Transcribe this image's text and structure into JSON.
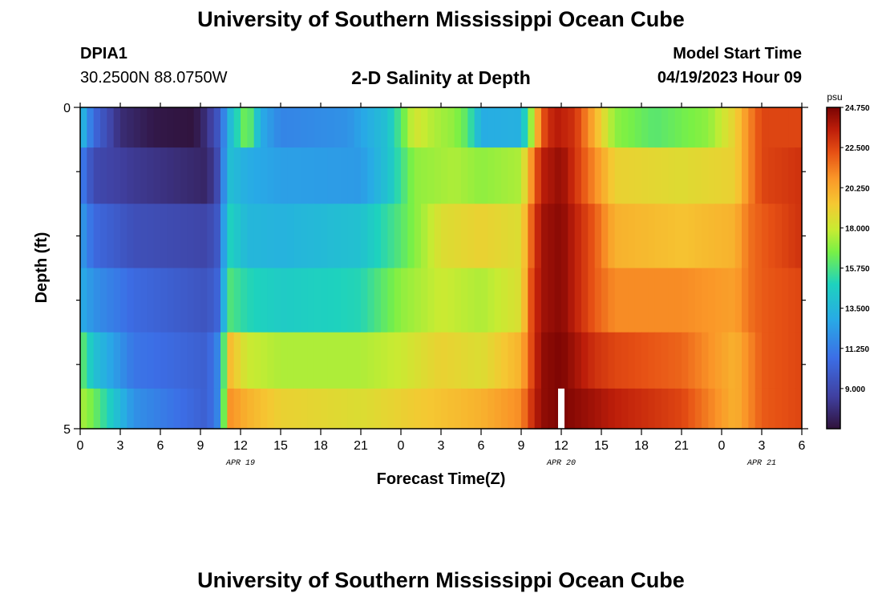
{
  "header": {
    "title": "University of Southern Mississippi Ocean Cube",
    "station_id": "DPIA1",
    "coordinates": "30.2500N  88.0750W",
    "subtitle": "2-D Salinity at Depth",
    "model_label": "Model Start Time",
    "model_time": "04/19/2023 Hour 09"
  },
  "footer": {
    "title": "University of Southern Mississippi Ocean Cube"
  },
  "chart_data": {
    "type": "heatmap",
    "xlabel": "Forecast Time(Z)",
    "ylabel": "Depth (ft)",
    "x_hour_range": [
      0,
      54
    ],
    "y_range": [
      0,
      5
    ],
    "x_tick_labels": [
      "0",
      "3",
      "6",
      "9",
      "12",
      "15",
      "18",
      "21",
      "0",
      "3",
      "6",
      "9",
      "12",
      "15",
      "18",
      "21",
      "0",
      "3",
      "6"
    ],
    "y_tick_labels": [
      "0",
      "5"
    ],
    "date_labels": [
      {
        "text": "APR 19",
        "hour": 12
      },
      {
        "text": "APR 20",
        "hour": 36
      },
      {
        "text": "APR 21",
        "hour": 51
      }
    ],
    "colorbar": {
      "unit": "psu",
      "min": 6.75,
      "max": 24.75,
      "tick_values": [
        9.0,
        11.25,
        13.5,
        15.75,
        18.0,
        20.25,
        22.5,
        24.75
      ],
      "tick_labels": [
        "9.000",
        "11.250",
        "13.500",
        "15.750",
        "18.000",
        "20.250",
        "22.500",
        "24.750"
      ]
    },
    "depth_levels": [
      0.25,
      1.0,
      2.0,
      3.0,
      4.0,
      4.75
    ],
    "time_step_hours": 0.5,
    "missing": {
      "hour": 36,
      "depth_level": 5
    },
    "layers": [
      [
        [
          0,
          14
        ],
        [
          1,
          10.5
        ],
        [
          3,
          7.8
        ],
        [
          5.5,
          7
        ],
        [
          8.5,
          6.8
        ],
        [
          9.5,
          8
        ],
        [
          10.5,
          10
        ],
        [
          11,
          13
        ],
        [
          12.5,
          17
        ],
        [
          13.5,
          13
        ],
        [
          15,
          11.5
        ],
        [
          20,
          12
        ],
        [
          23,
          14
        ],
        [
          24,
          16
        ],
        [
          25,
          18.3
        ],
        [
          26.5,
          17.5
        ],
        [
          28,
          17
        ],
        [
          29,
          16
        ],
        [
          30,
          13
        ],
        [
          33,
          13.2
        ],
        [
          33.8,
          17.5
        ],
        [
          34.5,
          22
        ],
        [
          35.5,
          23.7
        ],
        [
          37,
          23
        ],
        [
          38.5,
          20
        ],
        [
          40,
          17
        ],
        [
          43,
          16
        ],
        [
          47,
          17
        ],
        [
          49,
          19
        ],
        [
          50,
          21
        ],
        [
          51,
          22.5
        ],
        [
          54,
          22.5
        ]
      ],
      [
        [
          0,
          11.5
        ],
        [
          1,
          9
        ],
        [
          4,
          8.3
        ],
        [
          9.5,
          7.5
        ],
        [
          10.5,
          9.5
        ],
        [
          11,
          14
        ],
        [
          12.5,
          13
        ],
        [
          15,
          12.5
        ],
        [
          21,
          12.3
        ],
        [
          23,
          14
        ],
        [
          25,
          17
        ],
        [
          28,
          17.5
        ],
        [
          30,
          17
        ],
        [
          33,
          17.5
        ],
        [
          33.8,
          21
        ],
        [
          34.5,
          23.5
        ],
        [
          36,
          24.3
        ],
        [
          38.5,
          21
        ],
        [
          40,
          19
        ],
        [
          45,
          18.6
        ],
        [
          49,
          19
        ],
        [
          50,
          21
        ],
        [
          51,
          22.5
        ],
        [
          54,
          23
        ]
      ],
      [
        [
          0,
          12.5
        ],
        [
          1,
          10.5
        ],
        [
          4,
          9.3
        ],
        [
          9.5,
          8.8
        ],
        [
          10.5,
          10
        ],
        [
          11,
          15
        ],
        [
          12.5,
          13.5
        ],
        [
          15,
          13.3
        ],
        [
          21,
          14
        ],
        [
          24,
          16
        ],
        [
          27,
          18.5
        ],
        [
          30,
          19
        ],
        [
          33,
          18.5
        ],
        [
          33.8,
          22
        ],
        [
          34.5,
          24
        ],
        [
          36,
          24.5
        ],
        [
          38.5,
          22
        ],
        [
          40,
          20
        ],
        [
          45,
          19.5
        ],
        [
          49,
          20
        ],
        [
          50,
          21.5
        ],
        [
          51,
          22
        ],
        [
          54,
          23
        ]
      ],
      [
        [
          0,
          13
        ],
        [
          1,
          12
        ],
        [
          4,
          10.5
        ],
        [
          9.5,
          9.5
        ],
        [
          10.5,
          10.5
        ],
        [
          11,
          16
        ],
        [
          12.5,
          15
        ],
        [
          15,
          14.5
        ],
        [
          21,
          15
        ],
        [
          24,
          17
        ],
        [
          27,
          18
        ],
        [
          30,
          17.5
        ],
        [
          33,
          18.5
        ],
        [
          33.8,
          22.5
        ],
        [
          34.5,
          24
        ],
        [
          36,
          24.5
        ],
        [
          38.5,
          22
        ],
        [
          40,
          21
        ],
        [
          45,
          21
        ],
        [
          49,
          20.5
        ],
        [
          50,
          21.5
        ],
        [
          51,
          22
        ],
        [
          54,
          22.5
        ]
      ],
      [
        [
          0,
          16.5
        ],
        [
          1,
          14
        ],
        [
          4,
          11
        ],
        [
          9.5,
          10
        ],
        [
          10.5,
          12
        ],
        [
          11,
          20
        ],
        [
          12.5,
          18
        ],
        [
          15,
          17.5
        ],
        [
          21,
          17.5
        ],
        [
          24,
          18
        ],
        [
          27,
          19
        ],
        [
          30,
          18.5
        ],
        [
          33,
          20
        ],
        [
          33.8,
          22.5
        ],
        [
          34.5,
          24.3
        ],
        [
          36,
          24.7
        ],
        [
          38.5,
          23
        ],
        [
          40,
          22.5
        ],
        [
          45,
          21.8
        ],
        [
          49,
          20
        ],
        [
          50,
          21
        ],
        [
          51,
          22
        ],
        [
          54,
          22.5
        ]
      ],
      [
        [
          0,
          17.5
        ],
        [
          1,
          16.5
        ],
        [
          4,
          12
        ],
        [
          9.5,
          10
        ],
        [
          10.5,
          12
        ],
        [
          11,
          21
        ],
        [
          12.5,
          20
        ],
        [
          15,
          19
        ],
        [
          21,
          18.5
        ],
        [
          24,
          19
        ],
        [
          27,
          19.5
        ],
        [
          30,
          20
        ],
        [
          33,
          21
        ],
        [
          33.8,
          23
        ],
        [
          34.5,
          24.3
        ],
        [
          36,
          24.7
        ],
        [
          38.5,
          24
        ],
        [
          40,
          23.5
        ],
        [
          45,
          22.5
        ],
        [
          49,
          20
        ],
        [
          50,
          21
        ],
        [
          51,
          22
        ],
        [
          54,
          22.5
        ]
      ]
    ]
  }
}
